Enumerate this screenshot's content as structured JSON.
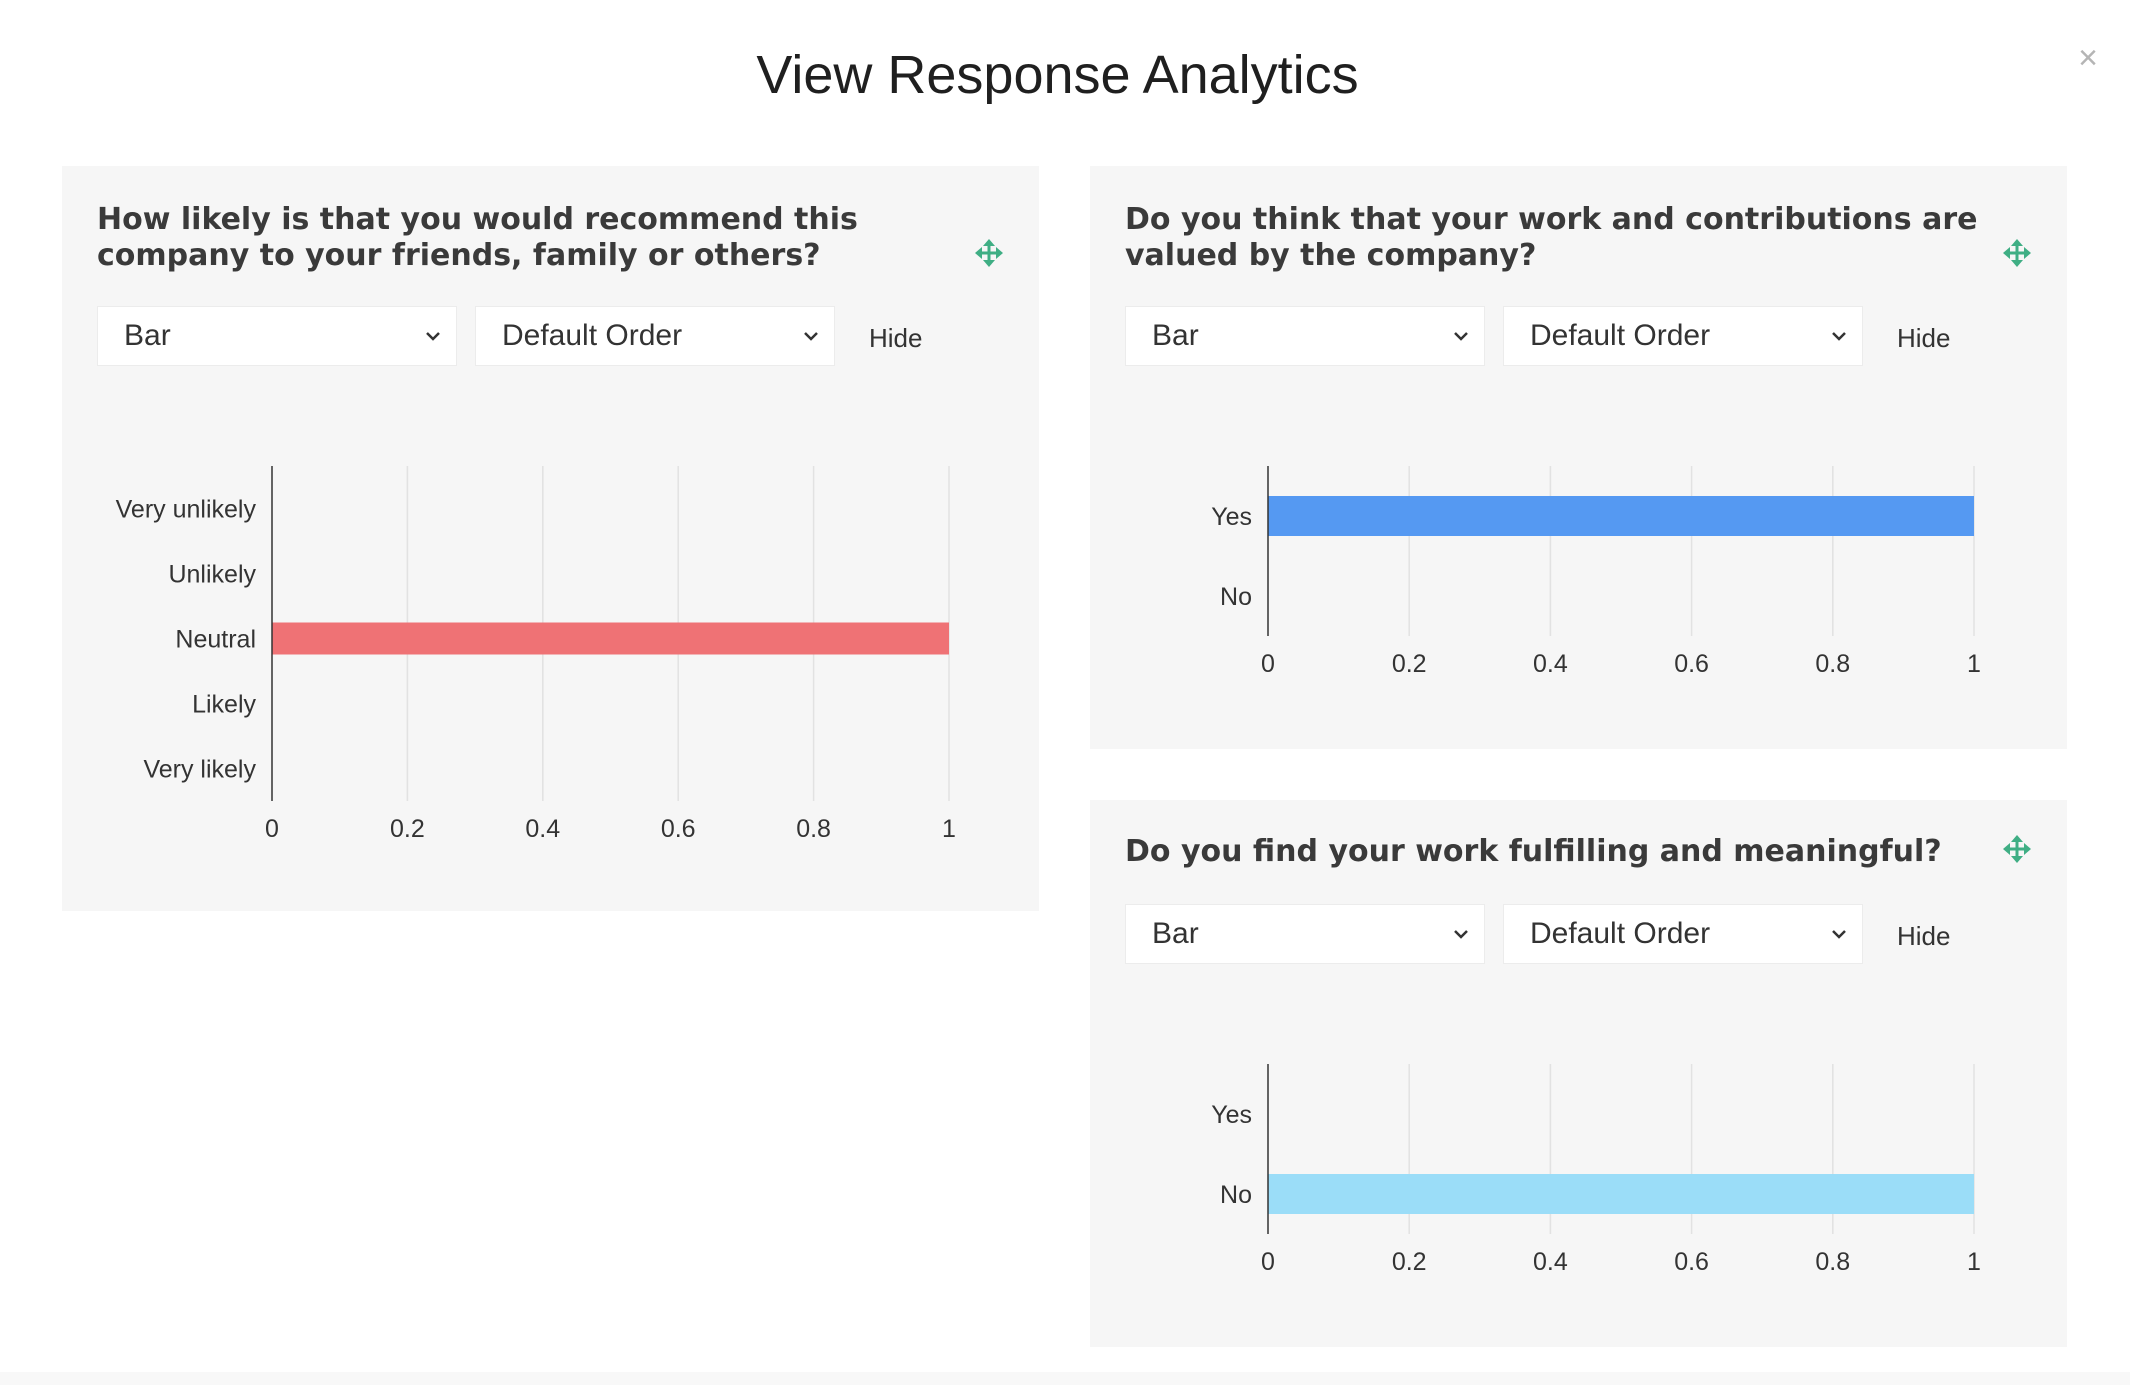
{
  "modal": {
    "title": "View Response Analytics",
    "close_glyph": "×"
  },
  "cards": [
    {
      "id": "q1",
      "title": "How likely is that you would recommend this company to your friends, family or others?",
      "chart_type_select": "Bar",
      "order_select": "Default Order",
      "hide_label": "Hide"
    },
    {
      "id": "q2",
      "title": "Do you think that your work and contributions are valued by the company?",
      "chart_type_select": "Bar",
      "order_select": "Default Order",
      "hide_label": "Hide"
    },
    {
      "id": "q3",
      "title": "Do you find your work fulfilling and meaningful?",
      "chart_type_select": "Bar",
      "order_select": "Default Order",
      "hide_label": "Hide"
    }
  ],
  "icons": {
    "move": "move-icon",
    "chevron": "chevron-down-icon",
    "close": "close-icon"
  },
  "colors": {
    "move_icon": "#3fae84",
    "grid": "#e2e2e2",
    "axis": "#333333"
  },
  "chart_data": [
    {
      "type": "bar",
      "orientation": "horizontal",
      "categories": [
        "Very unlikely",
        "Unlikely",
        "Neutral",
        "Likely",
        "Very likely"
      ],
      "values": [
        0,
        0,
        1,
        0,
        0
      ],
      "xlim": [
        0,
        1
      ],
      "xticks": [
        "0",
        "0.2",
        "0.4",
        "0.6",
        "0.8",
        "1"
      ],
      "color": "#ef7275",
      "grid": true
    },
    {
      "type": "bar",
      "orientation": "horizontal",
      "categories": [
        "Yes",
        "No"
      ],
      "values": [
        1,
        0
      ],
      "xlim": [
        0,
        1
      ],
      "xticks": [
        "0",
        "0.2",
        "0.4",
        "0.6",
        "0.8",
        "1"
      ],
      "color": "#5599f2",
      "grid": true
    },
    {
      "type": "bar",
      "orientation": "horizontal",
      "categories": [
        "Yes",
        "No"
      ],
      "values": [
        0,
        1
      ],
      "xlim": [
        0,
        1
      ],
      "xticks": [
        "0",
        "0.2",
        "0.4",
        "0.6",
        "0.8",
        "1"
      ],
      "color": "#9bddf8",
      "grid": true
    }
  ]
}
